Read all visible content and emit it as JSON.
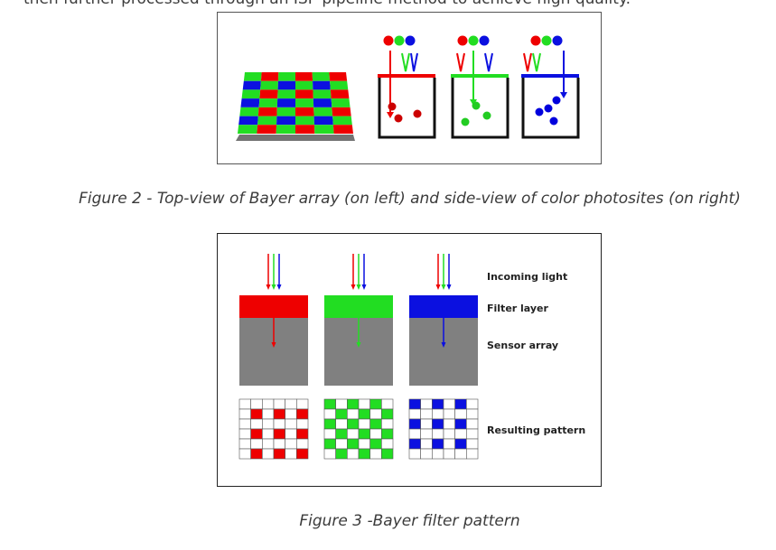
{
  "text": {
    "intro": "then further processed through an ISP pipeline method to achieve high quality."
  },
  "figure2": {
    "caption": "Figure 2 - Top-view of Bayer array (on left) and side-view of color photosites (on right)"
  },
  "figure3": {
    "caption": "Figure 3 -Bayer filter pattern",
    "labels": {
      "incoming_light": "Incoming light",
      "filter_layer": "Filter layer",
      "sensor_array": "Sensor array",
      "resulting_pattern": "Resulting pattern"
    }
  },
  "colors": {
    "red": "#ee0000",
    "green": "#22dd22",
    "blue": "#0b10e0",
    "sensor_gray": "#808080"
  }
}
